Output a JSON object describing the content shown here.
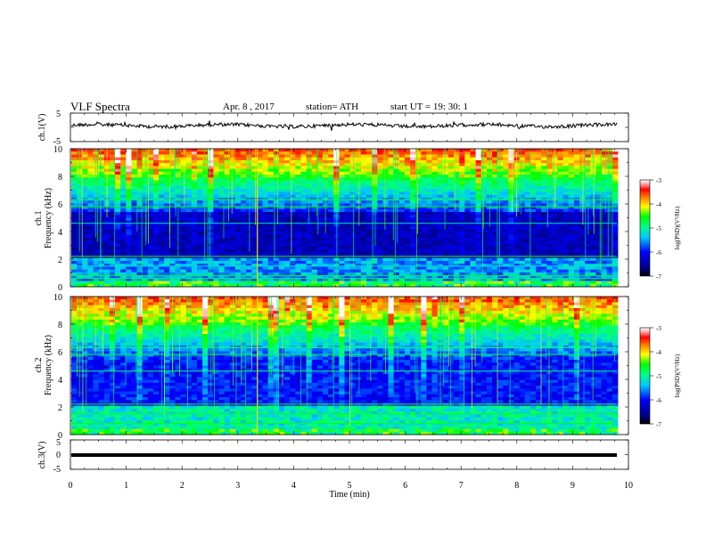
{
  "header": {
    "title": "VLF  Spectra",
    "date": "Apr. 8  , 2017",
    "station": "station= ATH",
    "start": "start  UT  =    19: 30: 1"
  },
  "chart_data": [
    {
      "type": "line",
      "panel": "ch1-voltage",
      "ylabel": "ch.1(V)",
      "ylim": [
        -5,
        5
      ],
      "yticks": [
        "5",
        "-5"
      ],
      "xlim": [
        0,
        10
      ],
      "description_level": "noisy waveform centred near +1 V",
      "color": "#000000"
    },
    {
      "type": "heatmap",
      "panel": "ch1-spectrogram",
      "ylabel": [
        "ch.1",
        "Frequency  (kHz)"
      ],
      "ylim": [
        0,
        10
      ],
      "yticks": [
        "0",
        "2",
        "4",
        "6",
        "8",
        "10"
      ],
      "xlim": [
        0,
        10
      ],
      "colorbar": {
        "label": "log(PSD)(V²/Hz)",
        "ticks": [
          "-3",
          "-4",
          "-5",
          "-6",
          "-7"
        ],
        "range": [
          -7,
          -3
        ]
      }
    },
    {
      "type": "heatmap",
      "panel": "ch2-spectrogram",
      "ylabel": [
        "ch.2",
        "Frequency  (kHz)"
      ],
      "ylim": [
        0,
        10
      ],
      "yticks": [
        "0",
        "2",
        "4",
        "6",
        "8",
        "10"
      ],
      "xlim": [
        0,
        10
      ],
      "colorbar": {
        "label": "log(PSD)(V²/Hz)",
        "ticks": [
          "-3",
          "-4",
          "-5",
          "-6",
          "-7"
        ],
        "range": [
          -7,
          -3
        ]
      }
    },
    {
      "type": "line",
      "panel": "ch3-voltage",
      "ylabel": "ch.3(V)",
      "ylim": [
        -5,
        5
      ],
      "yticks": [
        "5",
        "0",
        "-5"
      ],
      "xlim": [
        0,
        10
      ],
      "xlabel": "Time  (min)",
      "xticks": [
        "0",
        "1",
        "2",
        "3",
        "4",
        "5",
        "6",
        "7",
        "8",
        "9",
        "10"
      ],
      "color": "#000000"
    }
  ]
}
